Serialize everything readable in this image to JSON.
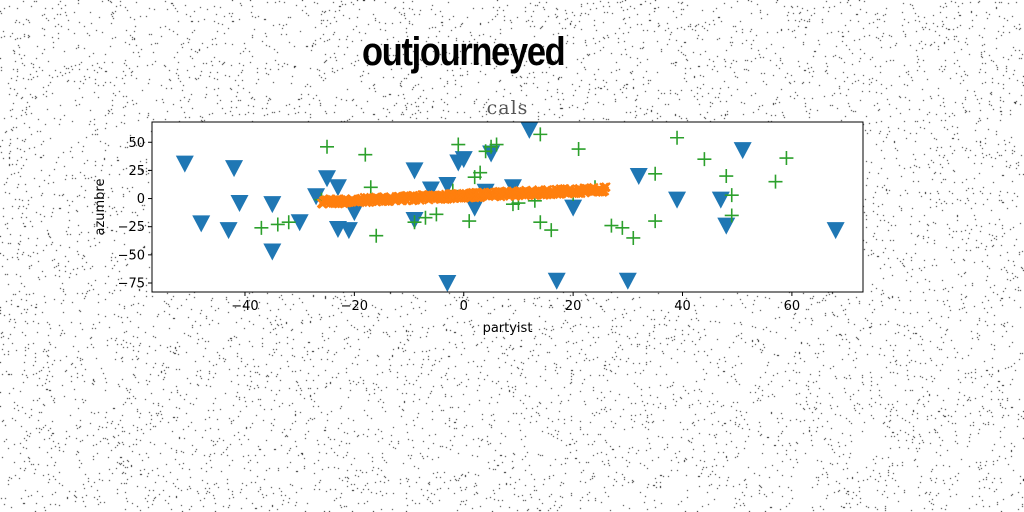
{
  "banner_text": "outjourneyed",
  "chart_data": {
    "type": "scatter",
    "title": "cals",
    "xlabel": "partyist",
    "ylabel": "azumbre",
    "xlim": [
      -57,
      73
    ],
    "ylim": [
      -83,
      68
    ],
    "xticks": [
      -40,
      -20,
      0,
      20,
      40,
      60
    ],
    "yticks": [
      -75,
      -50,
      -25,
      0,
      25,
      50
    ],
    "grid": false,
    "colors": {
      "triangles": "#1f77b4",
      "band": "#ff7f0e",
      "plus": "#2ca02c"
    },
    "series": [
      {
        "marker": "triangle-down",
        "color": "#1f77b4",
        "points": [
          [
            -51,
            31
          ],
          [
            -48,
            -22
          ],
          [
            -43,
            -28
          ],
          [
            -42,
            27
          ],
          [
            -41,
            -4
          ],
          [
            -35,
            -5
          ],
          [
            -35,
            -47
          ],
          [
            -30,
            -21
          ],
          [
            -27,
            2
          ],
          [
            -25,
            18
          ],
          [
            -23,
            10
          ],
          [
            -23,
            -27
          ],
          [
            -21,
            -28
          ],
          [
            -20,
            -12
          ],
          [
            -9,
            -19
          ],
          [
            -9,
            25
          ],
          [
            -6,
            8
          ],
          [
            -3,
            12
          ],
          [
            -3,
            -75
          ],
          [
            -1,
            32
          ],
          [
            0,
            35
          ],
          [
            2,
            -8
          ],
          [
            4,
            6
          ],
          [
            5,
            40
          ],
          [
            9,
            10
          ],
          [
            12,
            61
          ],
          [
            17,
            -73
          ],
          [
            20,
            -8
          ],
          [
            30,
            -73
          ],
          [
            32,
            20
          ],
          [
            39,
            -1
          ],
          [
            47,
            -1
          ],
          [
            48,
            -24
          ],
          [
            51,
            43
          ],
          [
            68,
            -28
          ]
        ]
      },
      {
        "marker": "plus",
        "color": "#2ca02c",
        "points": [
          [
            -37,
            -26
          ],
          [
            -34,
            -23
          ],
          [
            -32,
            -21
          ],
          [
            -26,
            -1
          ],
          [
            -25,
            46
          ],
          [
            -18,
            39
          ],
          [
            -17,
            10
          ],
          [
            -16,
            -33
          ],
          [
            -9,
            -21
          ],
          [
            -7,
            -17
          ],
          [
            -5,
            -14
          ],
          [
            -2,
            7
          ],
          [
            -1,
            48
          ],
          [
            1,
            -20
          ],
          [
            2,
            19
          ],
          [
            3,
            23
          ],
          [
            4,
            42
          ],
          [
            5,
            46
          ],
          [
            6,
            48
          ],
          [
            9,
            -5
          ],
          [
            10,
            -4
          ],
          [
            13,
            -2
          ],
          [
            14,
            -21
          ],
          [
            14,
            57
          ],
          [
            16,
            -28
          ],
          [
            20,
            4
          ],
          [
            21,
            44
          ],
          [
            24,
            10
          ],
          [
            27,
            -24
          ],
          [
            29,
            -26
          ],
          [
            31,
            -35
          ],
          [
            35,
            22
          ],
          [
            35,
            -20
          ],
          [
            39,
            54
          ],
          [
            44,
            35
          ],
          [
            48,
            20
          ],
          [
            49,
            3
          ],
          [
            49,
            -15
          ],
          [
            57,
            15
          ],
          [
            59,
            36
          ]
        ]
      },
      {
        "marker": "x",
        "color": "#ff7f0e",
        "x_range": [
          -26,
          26
        ],
        "y_range": [
          -3,
          8
        ]
      }
    ]
  }
}
